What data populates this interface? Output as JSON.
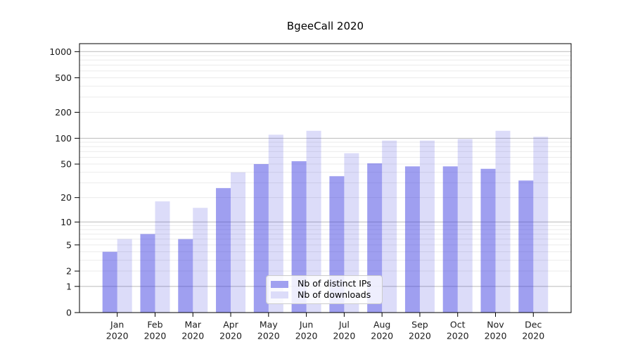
{
  "chart_data": {
    "type": "bar",
    "title": "BgeeCall 2020",
    "xlabel": "",
    "ylabel": "",
    "year": "2020",
    "categories": [
      "Jan",
      "Feb",
      "Mar",
      "Apr",
      "May",
      "Jun",
      "Jul",
      "Aug",
      "Sep",
      "Oct",
      "Nov",
      "Dec"
    ],
    "series": [
      {
        "name": "Nb of distinct IPs",
        "swatch_color": "#a0a0f0",
        "fill_color": "rgba(60,60,224,0.49)",
        "values": [
          4,
          7,
          6,
          26,
          50,
          54,
          36,
          51,
          47,
          47,
          44,
          32
        ]
      },
      {
        "name": "Nb of downloads",
        "swatch_color": "#dcdcf9",
        "fill_color": "rgba(60,60,224,0.18)",
        "values": [
          6,
          18,
          15,
          40,
          110,
          122,
          67,
          94,
          94,
          98,
          122,
          104
        ]
      }
    ],
    "yscale": "log1p",
    "ylim": [
      0,
      1240
    ],
    "yticks": [
      0,
      1,
      2,
      5,
      10,
      20,
      50,
      100,
      200,
      500,
      1000
    ],
    "major_gridlines": [
      1,
      10,
      100,
      1000
    ],
    "grid": true,
    "legend_position": "lower center",
    "colors": {
      "major_grid": "#c2c2c2",
      "minor_grid": "#ebebeb",
      "spine": "#000000",
      "tick_label": "#1a1a1a"
    }
  }
}
